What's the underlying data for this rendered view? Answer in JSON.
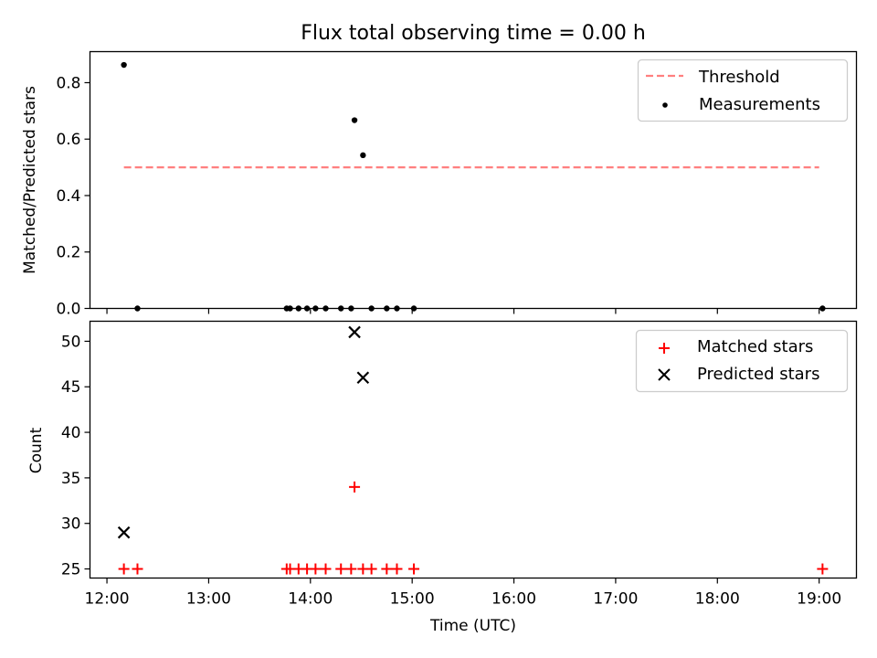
{
  "figure": {
    "title": "Flux total observing time = 0.00 h"
  },
  "chart_data": [
    {
      "type": "scatter",
      "panel": "top",
      "ylabel": "Matched/Predicted stars",
      "xlim": [
        "11:50",
        "19:22"
      ],
      "ylim": [
        0,
        0.91
      ],
      "yticks": [
        0.0,
        0.2,
        0.4,
        0.6,
        0.8
      ],
      "ytick_labels": [
        "0.0",
        "0.2",
        "0.4",
        "0.6",
        "0.8"
      ],
      "legend_position": "upper right",
      "threshold": {
        "name": "Threshold",
        "value": 0.5,
        "x_range": [
          "12:10",
          "19:00"
        ],
        "color": "#ff7f7f",
        "style": "dashed"
      },
      "series": [
        {
          "name": "Measurements",
          "color": "#000000",
          "marker": "dot",
          "points": [
            [
              "12:10",
              0.863
            ],
            [
              "12:18",
              0.0
            ],
            [
              "13:46",
              0.0
            ],
            [
              "13:48",
              0.0
            ],
            [
              "13:53",
              0.0
            ],
            [
              "13:58",
              0.0
            ],
            [
              "14:03",
              0.0
            ],
            [
              "14:09",
              0.0
            ],
            [
              "14:18",
              0.0
            ],
            [
              "14:24",
              0.0
            ],
            [
              "14:26",
              0.667
            ],
            [
              "14:31",
              0.543
            ],
            [
              "14:36",
              0.0
            ],
            [
              "14:45",
              0.0
            ],
            [
              "14:51",
              0.0
            ],
            [
              "15:01",
              0.0
            ],
            [
              "19:02",
              0.0
            ]
          ]
        }
      ]
    },
    {
      "type": "scatter",
      "panel": "bottom",
      "xlabel": "Time (UTC)",
      "ylabel": "Count",
      "xlim": [
        "11:50",
        "19:22"
      ],
      "ylim": [
        24,
        52.2
      ],
      "xticks": [
        "12:00",
        "13:00",
        "14:00",
        "15:00",
        "16:00",
        "17:00",
        "18:00",
        "19:00"
      ],
      "yticks": [
        25,
        30,
        35,
        40,
        45,
        50
      ],
      "ytick_labels": [
        "25",
        "30",
        "35",
        "40",
        "45",
        "50"
      ],
      "legend_position": "upper right",
      "series": [
        {
          "name": "Matched stars",
          "color": "#ff0000",
          "marker": "plus",
          "points": [
            [
              "12:10",
              25
            ],
            [
              "12:18",
              25
            ],
            [
              "13:46",
              25
            ],
            [
              "13:48",
              25
            ],
            [
              "13:53",
              25
            ],
            [
              "13:58",
              25
            ],
            [
              "14:03",
              25
            ],
            [
              "14:09",
              25
            ],
            [
              "14:18",
              25
            ],
            [
              "14:24",
              25
            ],
            [
              "14:26",
              34
            ],
            [
              "14:31",
              25
            ],
            [
              "14:36",
              25
            ],
            [
              "14:45",
              25
            ],
            [
              "14:51",
              25
            ],
            [
              "15:01",
              25
            ],
            [
              "19:02",
              25
            ]
          ]
        },
        {
          "name": "Predicted stars",
          "color": "#000000",
          "marker": "x",
          "points": [
            [
              "12:10",
              29
            ],
            [
              "14:26",
              51
            ],
            [
              "14:31",
              46
            ]
          ]
        }
      ]
    }
  ]
}
